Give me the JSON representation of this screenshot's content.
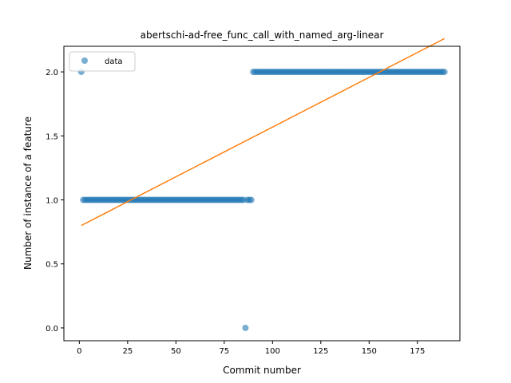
{
  "chart_data": {
    "type": "scatter",
    "title": "abertschi-ad-free_func_call_with_named_arg-linear",
    "xlabel": "Commit number",
    "ylabel": "Number of instance of a feature",
    "xlim": [
      -8,
      197
    ],
    "ylim": [
      -0.1,
      2.2
    ],
    "xticks": [
      0,
      25,
      50,
      75,
      100,
      125,
      150,
      175
    ],
    "yticks": [
      0.0,
      0.5,
      1.0,
      1.5,
      2.0
    ],
    "ytick_labels": [
      "0.0",
      "0.5",
      "1.0",
      "1.5",
      "2.0"
    ],
    "legend": {
      "location": "upper-left",
      "entries": [
        "data"
      ]
    },
    "series": [
      {
        "name": "data",
        "kind": "scatter",
        "color": "#1f77b4",
        "segments": [
          {
            "x_from": 1,
            "x_to": 1,
            "y": 2
          },
          {
            "x_from": 2,
            "x_to": 85,
            "y": 1
          },
          {
            "x_from": 86,
            "x_to": 86,
            "y": 0
          },
          {
            "x_from": 87,
            "x_to": 89,
            "y": 1
          },
          {
            "x_from": 90,
            "x_to": 189,
            "y": 2
          }
        ]
      },
      {
        "kind": "line",
        "color": "#ff7f0e",
        "x": [
          1,
          189
        ],
        "y": [
          0.8,
          2.26
        ]
      }
    ]
  }
}
